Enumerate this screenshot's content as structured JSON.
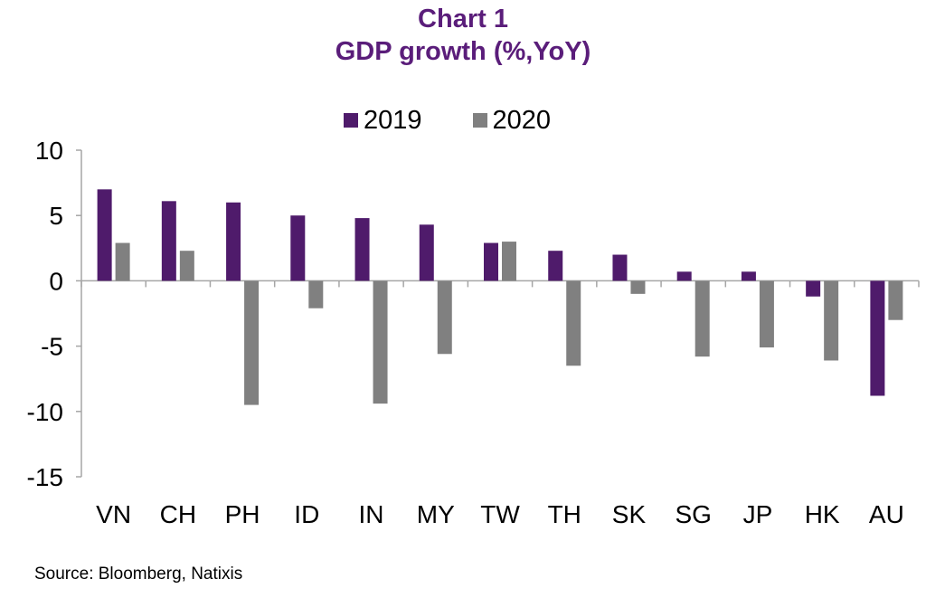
{
  "colors": {
    "series_2019": "#4f1b6b",
    "series_2020": "#808080",
    "title": "#5a1d7a",
    "axis": "#a6a6a6"
  },
  "source": "Source: Bloomberg, Natixis",
  "chart_data": {
    "type": "bar",
    "title": "Chart 1",
    "subtitle": "GDP growth (%,YoY)",
    "xlabel": "",
    "ylabel": "",
    "ylim": [
      -15,
      10
    ],
    "yticks": [
      "10",
      "5",
      "0",
      "-5",
      "-10",
      "-15"
    ],
    "legend_position": "top-center",
    "grid": false,
    "categories": [
      "VN",
      "CH",
      "PH",
      "ID",
      "IN",
      "MY",
      "TW",
      "TH",
      "SK",
      "SG",
      "JP",
      "HK",
      "AU"
    ],
    "series": [
      {
        "name": "2019",
        "values": [
          7.0,
          6.1,
          6.0,
          5.0,
          4.8,
          4.3,
          2.9,
          2.3,
          2.0,
          0.7,
          0.7,
          -1.2,
          -8.8
        ]
      },
      {
        "name": "2020",
        "values": [
          2.9,
          2.3,
          -9.5,
          -2.1,
          -9.4,
          -5.6,
          3.0,
          -6.5,
          -1.0,
          -5.8,
          -5.1,
          -6.1,
          -3.0
        ]
      }
    ]
  }
}
